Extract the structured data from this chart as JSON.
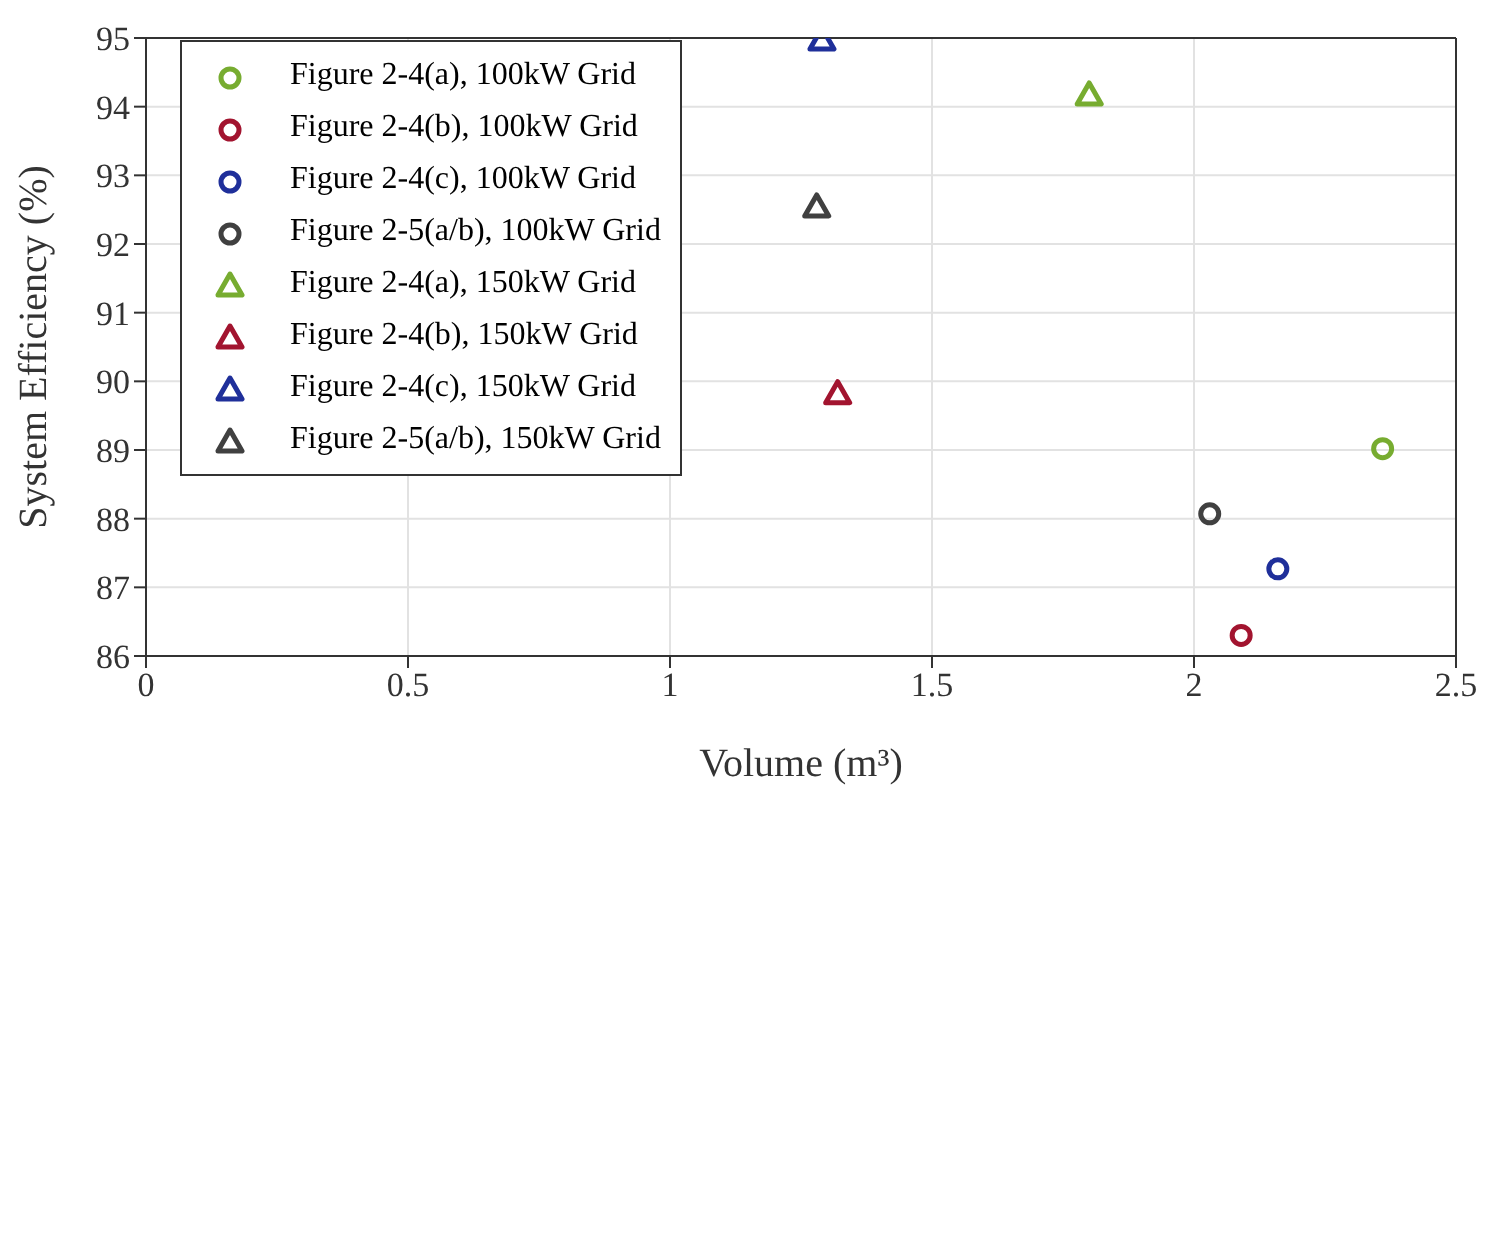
{
  "chart_data": {
    "type": "scatter",
    "xlabel": "Volume (m³)",
    "ylabel": "System Efficiency (%)",
    "xlim": [
      0,
      2.5
    ],
    "xticks": [
      0,
      0.5,
      1,
      1.5,
      2,
      2.5
    ],
    "ylim": [
      86,
      95
    ],
    "yticks": [
      86,
      87,
      88,
      89,
      90,
      91,
      92,
      93,
      94,
      95
    ],
    "grid": true,
    "legend": "top left",
    "series": [
      {
        "name": "Figure 2-4(a), 100kW Grid",
        "color": "#77ac30",
        "marker": "circle",
        "x": [
          2.36
        ],
        "values": [
          89.02
        ]
      },
      {
        "name": "Figure 2-4(b), 100kW Grid",
        "color": "#a2142f",
        "marker": "circle",
        "x": [
          2.09
        ],
        "values": [
          86.3
        ]
      },
      {
        "name": "Figure 2-4(c), 100kW Grid",
        "color": "#1f2f9a",
        "marker": "circle",
        "x": [
          2.16
        ],
        "values": [
          87.27
        ]
      },
      {
        "name": "Figure 2-5(a/b), 100kW Grid",
        "color": "#404040",
        "marker": "circle",
        "x": [
          2.03
        ],
        "values": [
          88.07
        ]
      },
      {
        "name": "Figure 2-4(a), 150kW Grid",
        "color": "#77ac30",
        "marker": "triangle",
        "x": [
          1.8
        ],
        "values": [
          94.17
        ]
      },
      {
        "name": "Figure 2-4(b), 150kW Grid",
        "color": "#a2142f",
        "marker": "triangle",
        "x": [
          1.32
        ],
        "values": [
          89.82
        ]
      },
      {
        "name": "Figure 2-4(c), 150kW Grid",
        "color": "#1f2f9a",
        "marker": "triangle",
        "x": [
          1.29
        ],
        "values": [
          94.97
        ]
      },
      {
        "name": "Figure 2-5(a/b), 150kW Grid",
        "color": "#404040",
        "marker": "triangle",
        "x": [
          1.28
        ],
        "values": [
          92.54
        ]
      }
    ]
  }
}
